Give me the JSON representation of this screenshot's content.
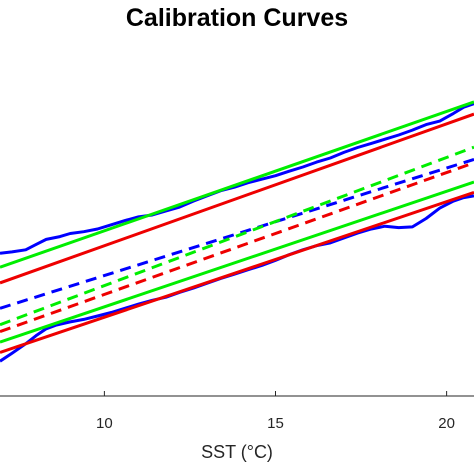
{
  "chart_data": {
    "type": "line",
    "title": "Calibration Curves",
    "xlabel": "SST (°C)",
    "ylabel": "",
    "xlim": [
      6.95,
      20.8
    ],
    "ylim": [
      0,
      100
    ],
    "xticks": [
      10,
      15,
      20
    ],
    "xtick_labels": [
      "10",
      "15",
      "20"
    ],
    "grid": false,
    "legend": "none",
    "series": [
      {
        "color": "#0000ff",
        "style": "solid",
        "x": [
          6.95,
          7.3,
          7.7,
          8.0,
          8.3,
          8.7,
          9.0,
          9.4,
          9.8,
          10.2,
          10.6,
          11.0,
          11.4,
          11.8,
          12.2,
          12.6,
          13.0,
          13.4,
          13.8,
          14.2,
          14.6,
          15.0,
          15.4,
          15.8,
          16.2,
          16.6,
          17.0,
          17.4,
          17.8,
          18.2,
          18.6,
          19.0,
          19.4,
          19.8,
          20.2,
          20.5,
          20.8
        ],
        "values": [
          41.0,
          41.4,
          42.0,
          43.5,
          45.0,
          45.8,
          46.7,
          47.2,
          48.0,
          49.2,
          50.4,
          51.5,
          52.0,
          53.2,
          54.3,
          56.0,
          57.5,
          59.0,
          60.0,
          61.3,
          62.3,
          63.3,
          64.6,
          65.8,
          67.2,
          68.4,
          70.0,
          71.4,
          72.6,
          73.8,
          75.0,
          76.4,
          78.0,
          79.0,
          81.2,
          83.0,
          84.0
        ]
      },
      {
        "color": "#0000ff",
        "style": "solid",
        "x": [
          6.95,
          7.3,
          7.7,
          8.0,
          8.3,
          8.6,
          9.0,
          9.4,
          9.8,
          10.2,
          10.6,
          11.0,
          11.4,
          11.8,
          12.2,
          12.6,
          13.0,
          13.4,
          13.8,
          14.2,
          14.6,
          15.0,
          15.4,
          15.8,
          16.2,
          16.6,
          17.0,
          17.4,
          17.8,
          18.2,
          18.6,
          19.0,
          19.4,
          19.8,
          20.2,
          20.5,
          20.8
        ],
        "values": [
          10.0,
          12.3,
          15.0,
          17.3,
          19.3,
          20.4,
          21.3,
          22.0,
          23.0,
          24.0,
          25.2,
          26.4,
          27.5,
          28.4,
          29.8,
          31.0,
          32.4,
          33.8,
          35.0,
          36.3,
          37.5,
          39.0,
          40.6,
          42.0,
          43.2,
          44.0,
          45.4,
          46.8,
          48.0,
          48.8,
          48.4,
          48.6,
          51.0,
          54.0,
          56.0,
          57.0,
          57.5
        ]
      },
      {
        "color": "#0000ff",
        "style": "dashed",
        "x": [
          6.95,
          20.8
        ],
        "values": [
          25.2,
          68.0
        ]
      },
      {
        "color": "#00ee00",
        "style": "solid",
        "x": [
          6.95,
          20.8
        ],
        "values": [
          37.0,
          84.5
        ]
      },
      {
        "color": "#00ee00",
        "style": "solid",
        "x": [
          6.95,
          20.8
        ],
        "values": [
          15.5,
          61.5
        ]
      },
      {
        "color": "#00ee00",
        "style": "dashed",
        "x": [
          6.95,
          20.8
        ],
        "values": [
          20.5,
          71.5
        ]
      },
      {
        "color": "#ee0000",
        "style": "solid",
        "x": [
          6.95,
          20.8
        ],
        "values": [
          32.5,
          81.0
        ]
      },
      {
        "color": "#ee0000",
        "style": "solid",
        "x": [
          6.95,
          20.8
        ],
        "values": [
          12.5,
          58.5
        ]
      },
      {
        "color": "#ee0000",
        "style": "dashed",
        "x": [
          6.95,
          20.8
        ],
        "values": [
          18.5,
          67.0
        ]
      }
    ]
  }
}
